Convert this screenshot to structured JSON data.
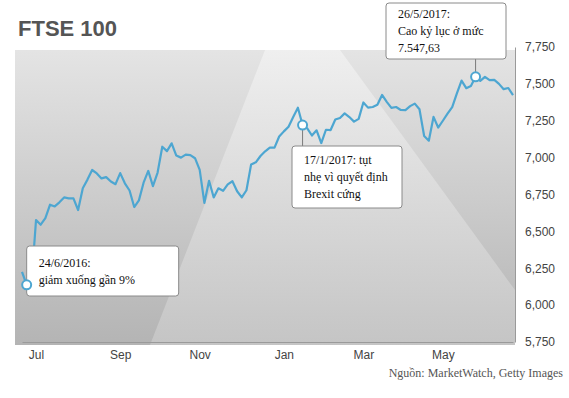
{
  "chart_data": {
    "type": "line",
    "title": "FTSE 100",
    "source": "Nguồn: MarketWatch, Getty Images",
    "color": "#4da6d1",
    "grid": false,
    "categories": [
      null,
      null,
      null,
      "Jul",
      null,
      null,
      null,
      null,
      null,
      null,
      null,
      null,
      null,
      null,
      null,
      null,
      null,
      null,
      null,
      null,
      null,
      "Sep",
      null,
      null,
      null,
      null,
      null,
      null,
      null,
      null,
      null,
      null,
      null,
      null,
      null,
      null,
      null,
      null,
      "Nov",
      null,
      null,
      null,
      null,
      null,
      null,
      null,
      null,
      null,
      null,
      null,
      null,
      null,
      null,
      null,
      null,
      null,
      "Jan",
      null,
      null,
      null,
      null,
      null,
      null,
      null,
      null,
      null,
      null,
      null,
      null,
      null,
      null,
      null,
      null,
      "Mar",
      null,
      null,
      null,
      null,
      null,
      null,
      null,
      null,
      null,
      null,
      null,
      null,
      null,
      null,
      null,
      null,
      "May",
      null,
      null,
      null,
      null,
      null,
      null,
      null,
      null,
      null,
      null,
      null,
      null,
      null,
      null,
      null
    ],
    "values": [
      6226,
      6138,
      6140,
      6577,
      6545,
      6590,
      6681,
      6669,
      6697,
      6730,
      6724,
      6724,
      6645,
      6793,
      6851,
      6916,
      6893,
      6859,
      6868,
      6838,
      6820,
      6895,
      6826,
      6777,
      6665,
      6710,
      6830,
      6910,
      6807,
      6899,
      7074,
      7044,
      7097,
      7014,
      7000,
      7020,
      7017,
      6996,
      6917,
      6693,
      6843,
      6730,
      6792,
      6775,
      6819,
      6840,
      6772,
      6730,
      6779,
      6954,
      6968,
      7011,
      7043,
      7068,
      7068,
      7143,
      7178,
      7210,
      7276,
      7338,
      7221,
      7198,
      7150,
      7185,
      7099,
      7189,
      7187,
      7258,
      7269,
      7300,
      7275,
      7244,
      7263,
      7374,
      7339,
      7343,
      7358,
      7425,
      7378,
      7337,
      7343,
      7323,
      7322,
      7349,
      7366,
      7328,
      7147,
      7115,
      7276,
      7204,
      7250,
      7298,
      7342,
      7435,
      7522,
      7471,
      7486,
      7547.63,
      7520,
      7547,
      7525,
      7527,
      7500,
      7464,
      7472,
      7424
    ],
    "ylim": [
      5750,
      7750
    ],
    "yticks": [
      {
        "value": 5750,
        "label": "5,750"
      },
      {
        "value": 6000,
        "label": "6,000"
      },
      {
        "value": 6250,
        "label": "6,250"
      },
      {
        "value": 6500,
        "label": "6,500"
      },
      {
        "value": 6750,
        "label": "6,750"
      },
      {
        "value": 7000,
        "label": "7,000"
      },
      {
        "value": 7250,
        "label": "7,250"
      },
      {
        "value": 7500,
        "label": "7,500"
      },
      {
        "value": 7750,
        "label": "7,750"
      }
    ],
    "annotations": [
      {
        "lines": [
          "24/6/2016:",
          "giảm xuống gần 9%"
        ]
      },
      {
        "lines": [
          "17/1/2017: tụt",
          "nhẹ vì quyết định",
          "Brexit cứng"
        ]
      },
      {
        "lines": [
          "26/5/2017:",
          "Cao kỷ lục ở mức",
          "7.547,63"
        ]
      }
    ]
  }
}
